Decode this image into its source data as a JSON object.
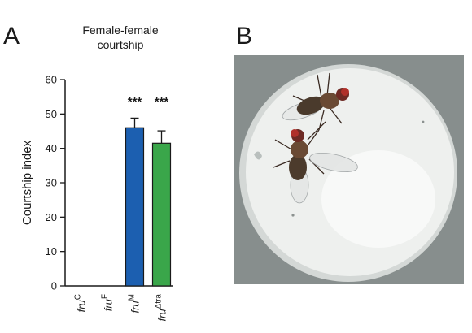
{
  "panels": {
    "a_letter": "A",
    "b_letter": "B"
  },
  "chart_data": {
    "type": "bar",
    "title_line1": "Female-female",
    "title_line2": "courtship",
    "xlabel": "",
    "ylabel": "Courtship index",
    "ylim": [
      0,
      60
    ],
    "yticks": [
      "0",
      "10",
      "20",
      "30",
      "40",
      "50",
      "60"
    ],
    "categories": [
      {
        "base": "fru",
        "sup": "C"
      },
      {
        "base": "fru",
        "sup": "F"
      },
      {
        "base": "fru",
        "sup": "M"
      },
      {
        "base": "fru",
        "sup": "Δtra"
      }
    ],
    "values": [
      0,
      0,
      46,
      41.5
    ],
    "errors": [
      0,
      0,
      2.8,
      3.6
    ],
    "significance": [
      "",
      "",
      "***",
      "***"
    ],
    "colors": [
      "#ffffff",
      "#ffffff",
      "#1c5fb0",
      "#3aa64a"
    ],
    "grid": false,
    "legend": "none"
  },
  "photo": {
    "subject": "two flies in a circular courtship chamber",
    "background_color": "#8f9695",
    "dish_color": "#eef0ee"
  }
}
